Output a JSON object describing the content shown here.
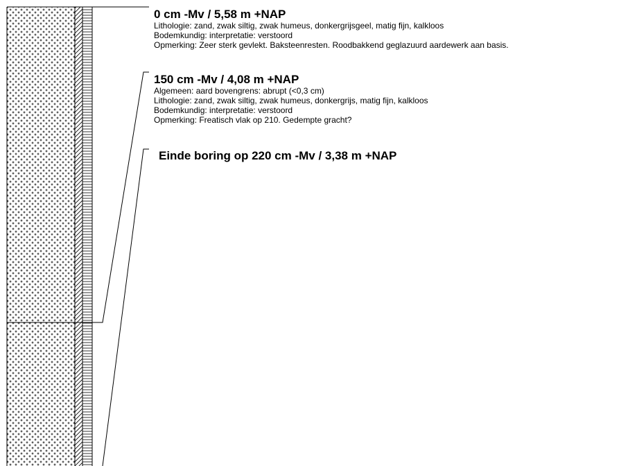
{
  "layers": [
    {
      "header": "0 cm -Mv / 5,58 m +NAP",
      "lines": [
        "Lithologie: zand, zwak siltig, zwak humeus, donkergrijsgeel, matig fijn, kalkloos",
        "Bodemkundig: interpretatie: verstoord",
        "Opmerking: Zeer sterk gevlekt. Baksteenresten. Roodbakkend geglazuurd aardewerk aan basis."
      ]
    },
    {
      "header": "150 cm -Mv / 4,08 m +NAP",
      "lines": [
        "Algemeen: aard bovengrens: abrupt (<0,3 cm)",
        "Lithologie: zand, zwak siltig, zwak humeus, donkergrijs, matig fijn, kalkloos",
        "Bodemkundig: interpretatie: verstoord",
        "Opmerking: Freatisch vlak op 210. Gedempte gracht?"
      ]
    }
  ],
  "end_label": "Einde boring op 220 cm -Mv / 3,38 m +NAP",
  "colors": {
    "line": "#000000",
    "background": "#ffffff"
  }
}
